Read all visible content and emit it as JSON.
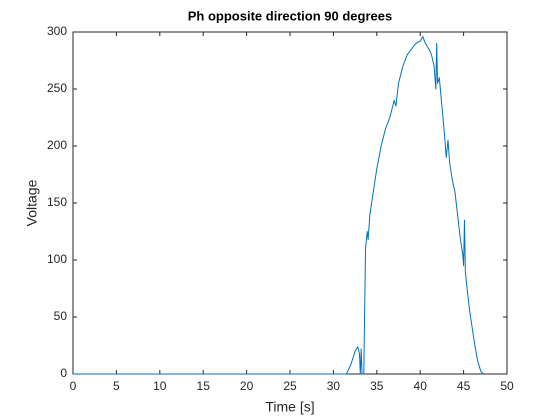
{
  "chart_data": {
    "type": "line",
    "title": "Ph opposite direction 90 degrees",
    "xlabel": "Time [s]",
    "ylabel": "Voltage",
    "color": "#0072bd",
    "x": [
      0,
      31.5,
      32.0,
      32.5,
      32.8,
      33.0,
      33.1,
      33.2,
      33.3,
      33.5,
      33.7,
      33.9,
      34.0,
      34.2,
      34.5,
      35,
      35.5,
      36,
      36.5,
      37,
      37.2,
      37.5,
      38,
      38.5,
      39,
      39.5,
      40,
      40.3,
      40.6,
      41,
      41.3,
      41.6,
      41.8,
      41.9,
      42.0,
      42.2,
      42.5,
      42.8,
      43.0,
      43.2,
      43.4,
      43.7,
      44,
      44.3,
      44.6,
      44.9,
      45.0,
      45.1,
      45.2,
      45.4,
      45.7,
      46,
      46.3,
      46.6,
      47.0,
      47.3
    ],
    "values": [
      0,
      0,
      8,
      20,
      24,
      18,
      0,
      22,
      0,
      0,
      110,
      125,
      118,
      140,
      155,
      180,
      200,
      215,
      225,
      240,
      235,
      255,
      270,
      280,
      285,
      290,
      292,
      296,
      290,
      285,
      280,
      270,
      250,
      290,
      255,
      260,
      235,
      210,
      190,
      205,
      185,
      170,
      160,
      140,
      120,
      105,
      95,
      135,
      90,
      75,
      55,
      40,
      25,
      12,
      2,
      0
    ],
    "xlim": [
      0,
      50
    ],
    "xticks": [
      0,
      5,
      10,
      15,
      20,
      25,
      30,
      35,
      40,
      45,
      50
    ],
    "ylim": [
      0,
      300
    ],
    "yticks": [
      0,
      50,
      100,
      150,
      200,
      250,
      300
    ]
  }
}
